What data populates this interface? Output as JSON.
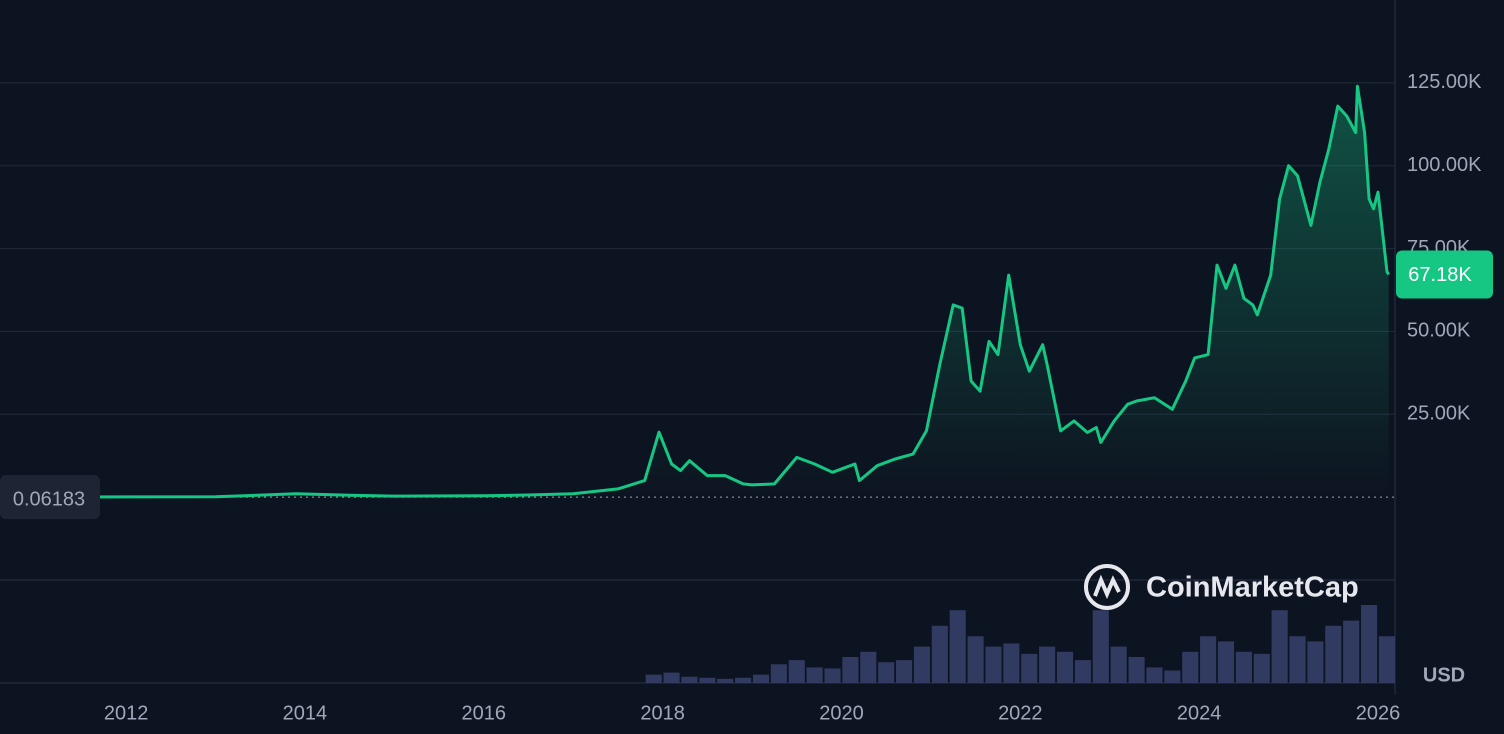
{
  "chart_data": {
    "type": "line",
    "color": "#16c784",
    "x": [
      2010.6,
      2013.0,
      2013.9,
      2014.5,
      2015.0,
      2016.0,
      2016.5,
      2017.0,
      2017.5,
      2017.8,
      2017.96,
      2018.1,
      2018.2,
      2018.3,
      2018.5,
      2018.7,
      2018.9,
      2019.0,
      2019.25,
      2019.5,
      2019.7,
      2019.9,
      2020.05,
      2020.15,
      2020.2,
      2020.4,
      2020.6,
      2020.8,
      2020.95,
      2021.1,
      2021.25,
      2021.35,
      2021.45,
      2021.55,
      2021.65,
      2021.75,
      2021.87,
      2022.0,
      2022.1,
      2022.25,
      2022.3,
      2022.45,
      2022.6,
      2022.75,
      2022.85,
      2022.9,
      2023.05,
      2023.2,
      2023.3,
      2023.5,
      2023.7,
      2023.85,
      2023.95,
      2024.1,
      2024.2,
      2024.3,
      2024.4,
      2024.5,
      2024.6,
      2024.65,
      2024.8,
      2024.9,
      2025.0,
      2025.1,
      2025.25,
      2025.35,
      2025.45,
      2025.55,
      2025.65,
      2025.75,
      2025.77,
      2025.85,
      2025.9,
      2025.95,
      2026.0,
      2026.1,
      2026.12
    ],
    "values": [
      0.06183,
      100,
      1000,
      600,
      300,
      400,
      650,
      1000,
      2500,
      5000,
      19600,
      10000,
      8000,
      11000,
      6500,
      6500,
      4000,
      3700,
      4000,
      12000,
      10000,
      7500,
      9000,
      10000,
      5000,
      9500,
      11500,
      13000,
      20000,
      40000,
      58000,
      57000,
      35000,
      32000,
      47000,
      43000,
      67000,
      46000,
      38000,
      46000,
      40000,
      20000,
      23000,
      19500,
      21000,
      16500,
      23000,
      28000,
      29000,
      30000,
      26500,
      35000,
      42000,
      43000,
      70000,
      63000,
      70000,
      60000,
      58000,
      55000,
      67000,
      90000,
      100000,
      97000,
      82000,
      95000,
      105000,
      118000,
      115000,
      110000,
      124000,
      110000,
      90000,
      87000,
      92000,
      68000,
      67180
    ],
    "xlim": [
      2010.59,
      2026.19
    ],
    "xticks": [
      2012,
      2014,
      2016,
      2018,
      2020,
      2022,
      2024,
      2026
    ],
    "ylim": [
      -25000,
      150000
    ],
    "yticks": [
      {
        "value": 25000,
        "label": "25.00K"
      },
      {
        "value": 50000,
        "label": "50.00K"
      },
      {
        "value": 75000,
        "label": "75.00K"
      },
      {
        "value": 100000,
        "label": "100.00K"
      },
      {
        "value": 125000,
        "label": "125.00K"
      }
    ],
    "grid": true,
    "start_price": 0.06183,
    "last_price": {
      "value": 67180,
      "label": "67.18K"
    },
    "volume": {
      "color": "#3b4470",
      "x": [
        2017.9,
        2018.1,
        2018.3,
        2018.5,
        2018.7,
        2018.9,
        2019.1,
        2019.3,
        2019.5,
        2019.7,
        2019.9,
        2020.1,
        2020.3,
        2020.5,
        2020.7,
        2020.9,
        2021.1,
        2021.3,
        2021.5,
        2021.7,
        2021.9,
        2022.1,
        2022.3,
        2022.5,
        2022.7,
        2022.9,
        2023.1,
        2023.3,
        2023.5,
        2023.7,
        2023.9,
        2024.1,
        2024.3,
        2024.5,
        2024.7,
        2024.9,
        2025.1,
        2025.3,
        2025.5,
        2025.7,
        2025.9,
        2026.1
      ],
      "values": [
        8,
        10,
        6,
        5,
        4,
        5,
        8,
        18,
        22,
        15,
        14,
        25,
        30,
        20,
        22,
        35,
        55,
        70,
        45,
        35,
        38,
        28,
        35,
        30,
        22,
        70,
        35,
        25,
        15,
        12,
        30,
        45,
        40,
        30,
        28,
        70,
        45,
        40,
        55,
        60,
        75,
        45
      ]
    },
    "watermark": "CoinMarketCap",
    "currency": "USD"
  }
}
